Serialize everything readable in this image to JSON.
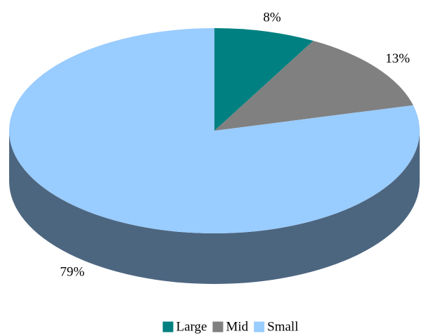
{
  "chart_data": {
    "type": "pie3d",
    "categories": [
      "Large",
      "Mid",
      "Small"
    ],
    "values": [
      8,
      13,
      79
    ],
    "value_labels": [
      "8%",
      "13%",
      "79%"
    ],
    "colors": [
      "#008080",
      "#808080",
      "#99ccff"
    ],
    "legend": "bottom"
  }
}
